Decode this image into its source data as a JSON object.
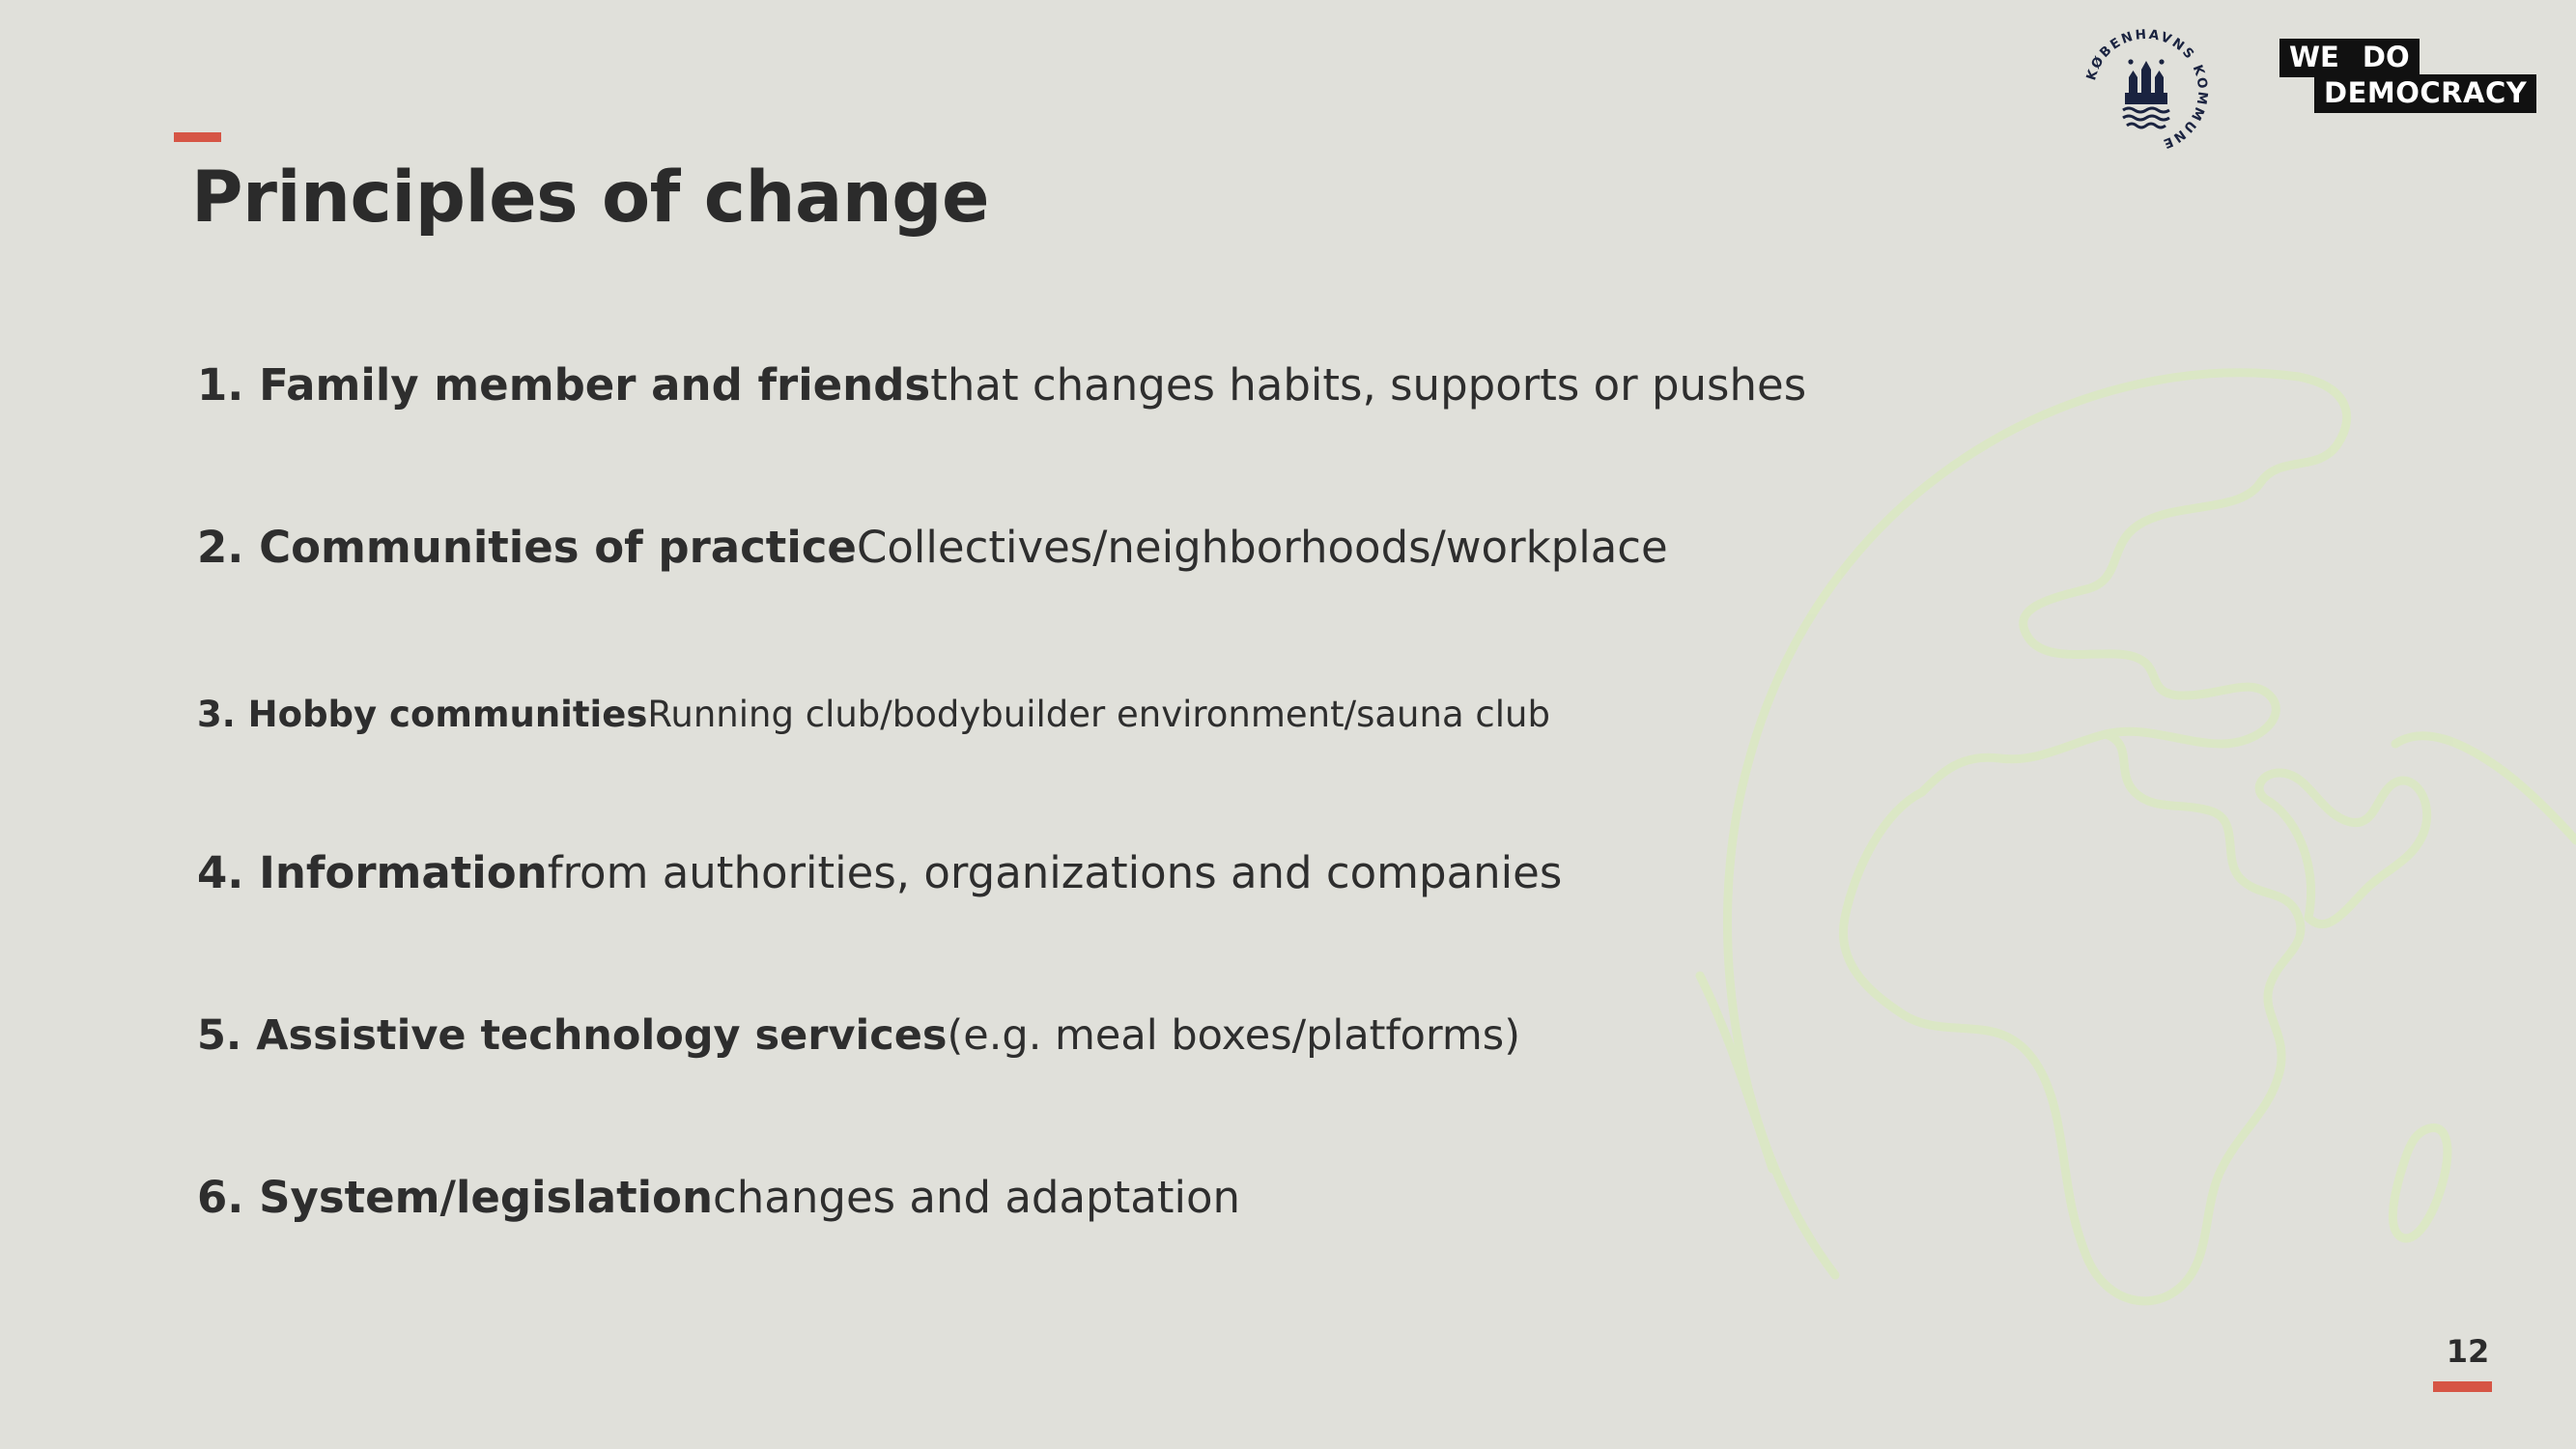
{
  "slide": {
    "title": "Principles of change",
    "page_number": "12"
  },
  "principles": [
    {
      "lead": "1. Family member and friends",
      "rest": "that changes habits, supports or pushes"
    },
    {
      "lead": "2. Communities of practice",
      "rest": "Collectives/neighborhoods/workplace"
    },
    {
      "lead": "3. Hobby communities",
      "rest": "Running club/bodybuilder environment/sauna club"
    },
    {
      "lead": "4. Information",
      "rest": "from authorities, organizations and companies"
    },
    {
      "lead": "5. Assistive technology services",
      "rest": "(e.g. meal boxes/platforms)"
    },
    {
      "lead": "6. System/legislation",
      "rest": "changes and adaptation"
    }
  ],
  "logos": {
    "city_seal_text": "KØBENHAVNS KOMMUNE",
    "wdd_line_1": "WE DO",
    "wdd_line_2": "DEMOCRACY"
  },
  "colors": {
    "background": "#e0e0da",
    "accent": "#d65545",
    "text": "#2b2b2b",
    "globe_outline": "#dbe8c4",
    "logo_navy": "#1a2340"
  },
  "icons": {
    "globe": "globe-line-drawing-icon",
    "seal": "copenhagen-city-seal-icon"
  }
}
